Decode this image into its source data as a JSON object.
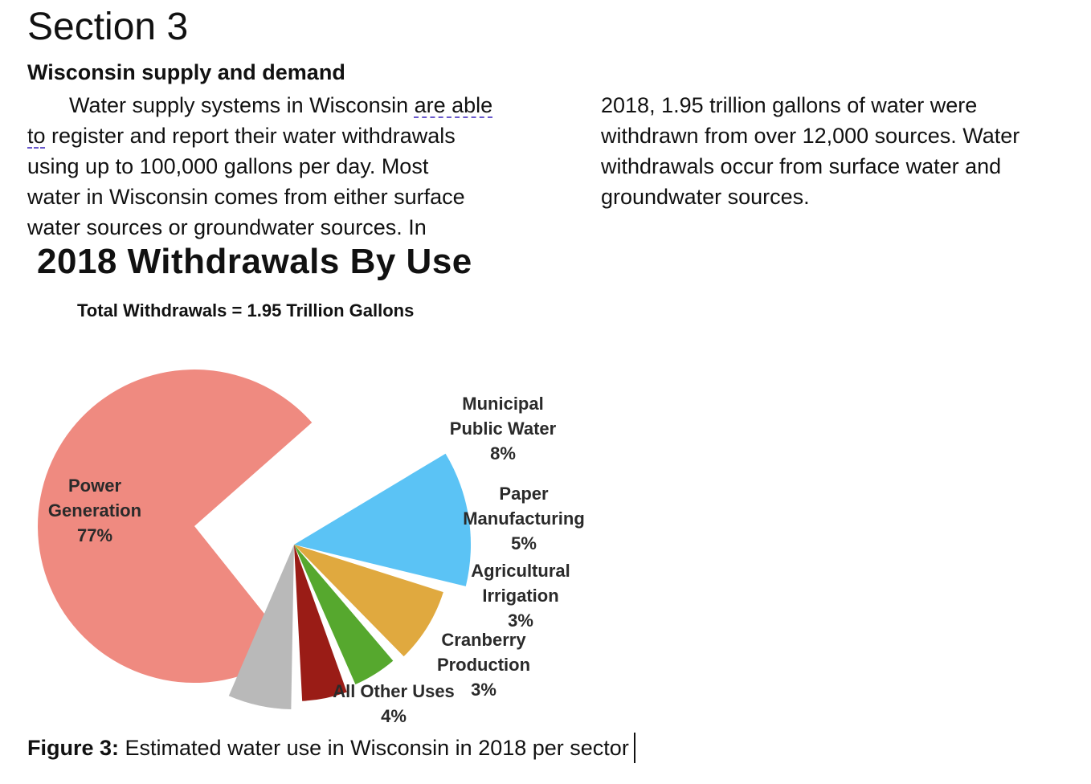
{
  "section": {
    "heading": "Section 3",
    "subheading": "Wisconsin supply and demand"
  },
  "paragraph": {
    "left_lines": [
      "Water supply systems in Wisconsin ",
      "are able",
      "to",
      " register and report their water withdrawals",
      "using up to 100,000 gallons per day.  Most",
      "water in Wisconsin comes from either surface",
      "water sources or groundwater sources.  In"
    ],
    "right_lines": [
      "2018, 1.95 trillion gallons of water were",
      "withdrawn from over 12,000 sources.  Water",
      "withdrawals occur from surface water and",
      "groundwater sources."
    ]
  },
  "chart_data": {
    "type": "pie",
    "title": "2018 Withdrawals By Use",
    "subtitle": "Total Withdrawals = 1.95 Trillion Gallons",
    "slices": [
      {
        "name": "Power Generation",
        "label_lines": [
          "Power",
          "Generation",
          "77%"
        ],
        "value": 77,
        "color": "#ef8a80"
      },
      {
        "name": "Municipal Public Water",
        "label_lines": [
          "Municipal",
          "Public Water",
          "8%"
        ],
        "value": 8,
        "color": "#5bc3f5"
      },
      {
        "name": "Paper Manufacturing",
        "label_lines": [
          "Paper",
          "Manufacturing",
          "5%"
        ],
        "value": 5,
        "color": "#e0a93f"
      },
      {
        "name": "Agricultural Irrigation",
        "label_lines": [
          "Agricultural",
          "Irrigation",
          "3%"
        ],
        "value": 3,
        "color": "#56a82e"
      },
      {
        "name": "Cranberry Production",
        "label_lines": [
          "Cranberry",
          "Production",
          "3%"
        ],
        "value": 3,
        "color": "#9a1c16"
      },
      {
        "name": "All Other Uses",
        "label_lines": [
          "All Other Uses",
          "4%"
        ],
        "value": 4,
        "color": "#b9b9b9"
      }
    ]
  },
  "caption": {
    "label": "Figure 3:",
    "text": " Estimated water use in Wisconsin in 2018 per sector"
  }
}
